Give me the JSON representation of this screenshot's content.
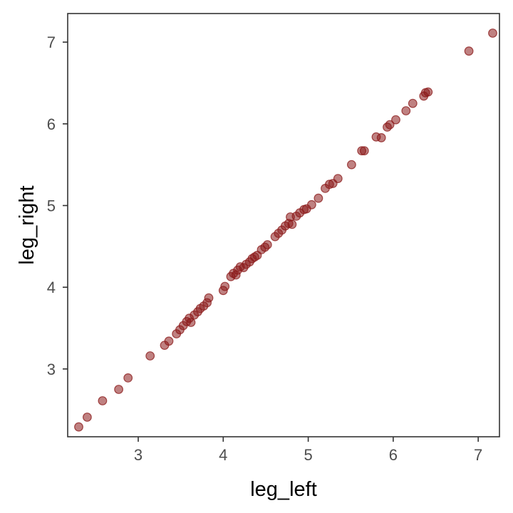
{
  "chart_data": {
    "type": "scatter",
    "title": "",
    "xlabel": "leg_left",
    "ylabel": "leg_right",
    "xlim": [
      2.17,
      7.25
    ],
    "ylim": [
      2.17,
      7.35
    ],
    "x_ticks": [
      3,
      4,
      5,
      6,
      7
    ],
    "y_ticks": [
      3,
      4,
      5,
      6,
      7
    ],
    "x_tick_labels": [
      "3",
      "4",
      "5",
      "6",
      "7"
    ],
    "y_tick_labels": [
      "3",
      "4",
      "5",
      "6",
      "7"
    ],
    "grid": false,
    "point_color": "#8B1A1A",
    "point_opacity": 0.55,
    "x": [
      2.3,
      2.4,
      2.58,
      2.77,
      2.88,
      3.14,
      3.31,
      3.36,
      3.45,
      3.49,
      3.53,
      3.57,
      3.6,
      3.62,
      3.66,
      3.7,
      3.73,
      3.77,
      3.81,
      3.83,
      4.0,
      4.02,
      4.09,
      4.12,
      4.15,
      4.17,
      4.2,
      4.24,
      4.27,
      4.31,
      4.34,
      4.37,
      4.4,
      4.45,
      4.49,
      4.52,
      4.61,
      4.65,
      4.69,
      4.73,
      4.77,
      4.79,
      4.81,
      4.86,
      4.9,
      4.95,
      4.98,
      5.04,
      5.12,
      5.2,
      5.25,
      5.29,
      5.35,
      5.51,
      5.63,
      5.66,
      5.8,
      5.86,
      5.93,
      5.96,
      6.03,
      6.15,
      6.23,
      6.36,
      6.38,
      6.41,
      6.89,
      7.17
    ],
    "y": [
      2.29,
      2.41,
      2.61,
      2.75,
      2.89,
      3.16,
      3.29,
      3.34,
      3.43,
      3.48,
      3.53,
      3.58,
      3.62,
      3.57,
      3.66,
      3.7,
      3.74,
      3.77,
      3.81,
      3.87,
      3.96,
      4.01,
      4.13,
      4.17,
      4.15,
      4.21,
      4.25,
      4.24,
      4.28,
      4.31,
      4.35,
      4.37,
      4.39,
      4.46,
      4.49,
      4.52,
      4.62,
      4.66,
      4.7,
      4.75,
      4.78,
      4.86,
      4.77,
      4.87,
      4.91,
      4.95,
      4.96,
      5.01,
      5.09,
      5.21,
      5.26,
      5.27,
      5.33,
      5.5,
      5.67,
      5.67,
      5.84,
      5.83,
      5.96,
      5.99,
      6.05,
      6.16,
      6.25,
      6.34,
      6.38,
      6.39,
      6.89,
      7.11
    ]
  }
}
